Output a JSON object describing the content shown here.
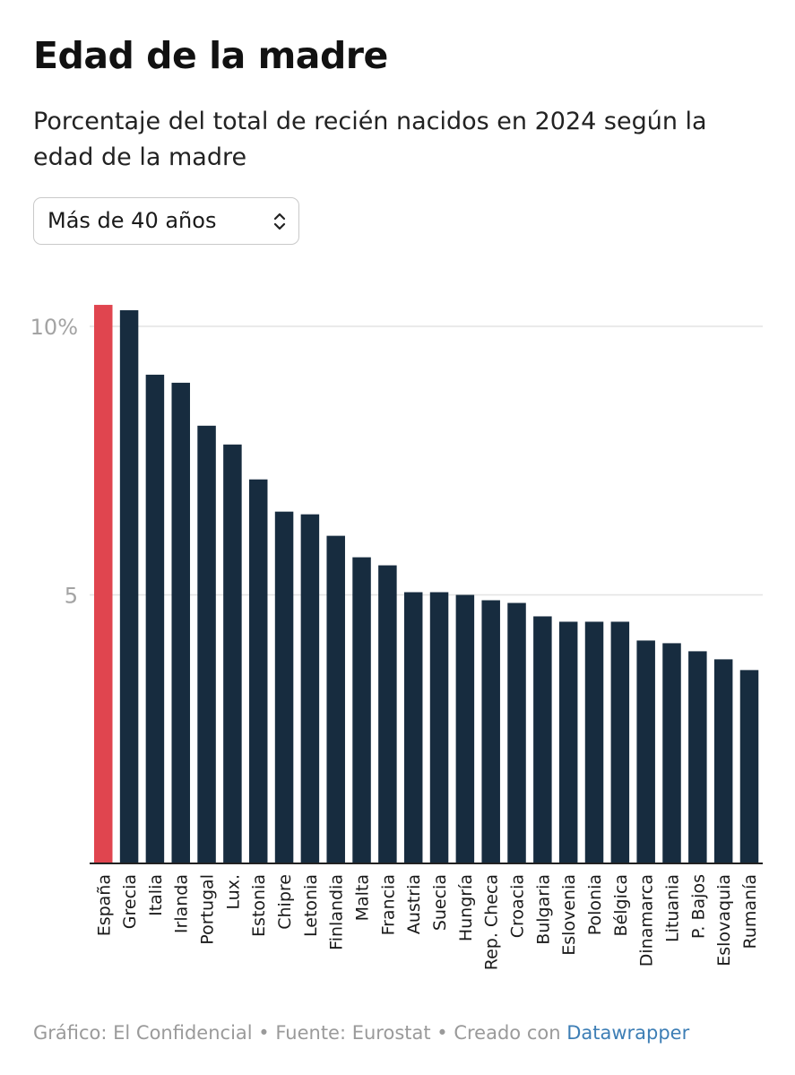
{
  "title": "Edad de la madre",
  "subtitle": "Porcentaje del total de recién nacidos en 2024 según la edad de la madre",
  "dropdown": {
    "selected": "Más de 40 años",
    "icon": "chevron-up-down-icon"
  },
  "colors": {
    "highlight": "#e0454f",
    "bar": "#172c3f",
    "grid": "#e3e3e3",
    "link": "#3d7eb5"
  },
  "chart_data": {
    "type": "bar",
    "title": "Edad de la madre",
    "subtitle": "Porcentaje del total de recién nacidos en 2024 según la edad de la madre",
    "categories": [
      "España",
      "Grecia",
      "Italia",
      "Irlanda",
      "Portugal",
      "Lux.",
      "Estonia",
      "Chipre",
      "Letonia",
      "Finlandia",
      "Malta",
      "Francia",
      "Austria",
      "Suecia",
      "Hungría",
      "Rep. Checa",
      "Croacia",
      "Bulgaria",
      "Eslovenia",
      "Polonia",
      "Bélgica",
      "Dinamarca",
      "Lituania",
      "P. Bajos",
      "Eslovaquia",
      "Rumanía"
    ],
    "values": [
      10.4,
      10.3,
      9.1,
      8.95,
      8.15,
      7.8,
      7.15,
      6.55,
      6.5,
      6.1,
      5.7,
      5.55,
      5.05,
      5.05,
      5.0,
      4.9,
      4.85,
      4.6,
      4.5,
      4.5,
      4.5,
      4.15,
      4.1,
      3.95,
      3.8,
      3.6
    ],
    "highlight_index": 0,
    "yticks": [
      0,
      5,
      10
    ],
    "ytick_labels": [
      "",
      "5",
      "10%"
    ],
    "ylim": [
      0,
      10.6
    ],
    "grid": true,
    "xlabel": "",
    "ylabel": ""
  },
  "footer": {
    "source_text": "Gráfico: El Confidencial • Fuente: Eurostat • Creado con ",
    "link_text": "Datawrapper"
  }
}
